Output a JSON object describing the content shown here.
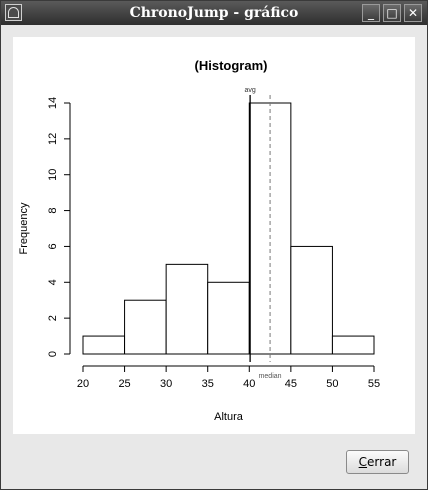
{
  "window": {
    "title": "ChronoJump - gráfico",
    "minimize_glyph": "_",
    "maximize_glyph": "□",
    "close_glyph": "✕",
    "app_icon": "chronojump-icon"
  },
  "chart_data": {
    "type": "bar",
    "title": "(Histogram)",
    "xlabel": "Altura",
    "ylabel": "Frequency",
    "bins": [
      {
        "from": 20,
        "to": 25,
        "count": 1
      },
      {
        "from": 25,
        "to": 30,
        "count": 3
      },
      {
        "from": 30,
        "to": 35,
        "count": 5
      },
      {
        "from": 35,
        "to": 40,
        "count": 4
      },
      {
        "from": 40,
        "to": 45,
        "count": 14
      },
      {
        "from": 45,
        "to": 50,
        "count": 6
      },
      {
        "from": 50,
        "to": 55,
        "count": 1
      }
    ],
    "xlim": [
      20,
      55
    ],
    "ylim": [
      0,
      14
    ],
    "x_ticks": [
      20,
      25,
      30,
      35,
      40,
      45,
      50,
      55
    ],
    "y_ticks": [
      0,
      2,
      4,
      6,
      8,
      10,
      12,
      14
    ],
    "annotations": [
      {
        "label": "avg",
        "x": 40.1,
        "style": "solid"
      },
      {
        "label": "median",
        "x": 42.5,
        "style": "dashed"
      }
    ],
    "grid": false
  },
  "footer": {
    "close_label_underlined": "C",
    "close_label_rest": "errar"
  }
}
